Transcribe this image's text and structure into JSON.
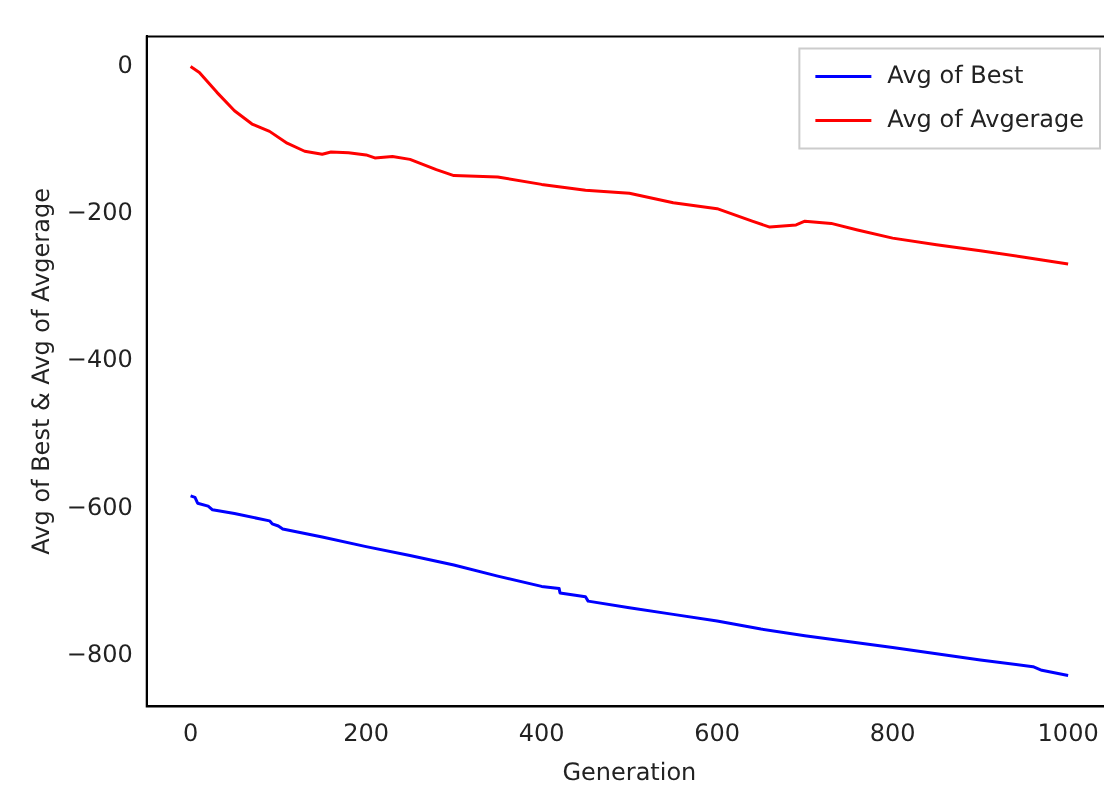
{
  "chart_data": {
    "type": "line",
    "xlabel": "Generation",
    "ylabel": "Avg of Best & Avg of Avgerage",
    "xlim": [
      -50,
      1050
    ],
    "ylim": [
      -869,
      41
    ],
    "xticks": [
      0,
      200,
      400,
      600,
      800,
      1000
    ],
    "yticks": [
      -800,
      -600,
      -400,
      -200,
      0
    ],
    "grid": false,
    "legend": "top right",
    "marker": "none",
    "line_style": "solid",
    "series": [
      {
        "name": "Avg of Best",
        "color": "#0000ff",
        "x": [
          0,
          5,
          8,
          20,
          25,
          50,
          90,
          93,
          100,
          105,
          150,
          200,
          250,
          300,
          350,
          400,
          420,
          421,
          450,
          453,
          500,
          550,
          600,
          650,
          700,
          800,
          900,
          960,
          970,
          1000
        ],
        "values": [
          -583,
          -585,
          -593,
          -597,
          -602,
          -607,
          -617,
          -621,
          -624,
          -628,
          -639,
          -652,
          -664,
          -677,
          -692,
          -706,
          -709,
          -715,
          -720,
          -726,
          -735,
          -744,
          -753,
          -764,
          -773,
          -789,
          -806,
          -815,
          -820,
          -827
        ]
      },
      {
        "name": "Avg of Avgerage",
        "color": "#ff0000",
        "x": [
          0,
          10,
          30,
          50,
          70,
          90,
          110,
          130,
          150,
          160,
          180,
          200,
          210,
          230,
          250,
          280,
          300,
          350,
          400,
          450,
          500,
          550,
          600,
          640,
          660,
          690,
          700,
          730,
          760,
          800,
          850,
          900,
          950,
          1000
        ],
        "values": [
          0,
          -8,
          -35,
          -60,
          -78,
          -88,
          -104,
          -115,
          -119,
          -116,
          -117,
          -120,
          -124,
          -122,
          -126,
          -140,
          -148,
          -150,
          -160,
          -168,
          -172,
          -185,
          -193,
          -210,
          -218,
          -215,
          -210,
          -213,
          -222,
          -233,
          -242,
          -250,
          -259,
          -268
        ]
      }
    ]
  }
}
